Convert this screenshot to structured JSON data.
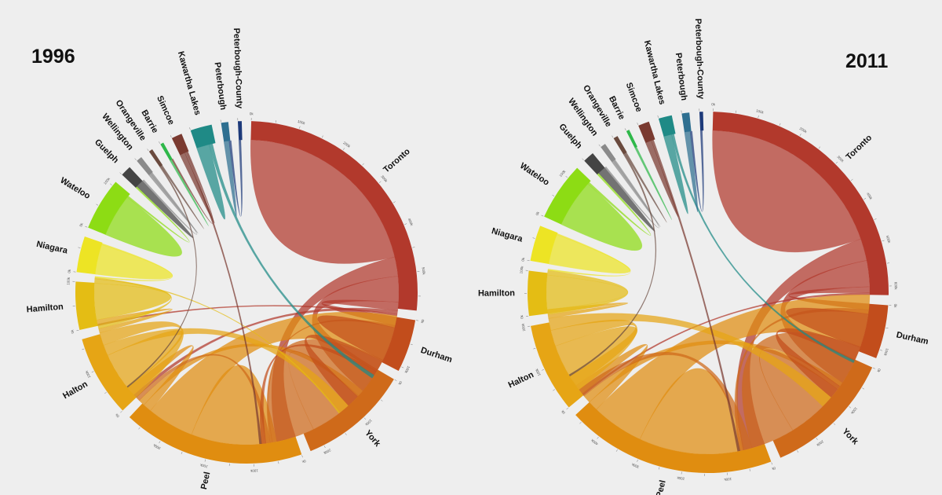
{
  "chart_data": [
    {
      "type": "chord",
      "title": "1996",
      "regions": [
        {
          "name": "Toronto",
          "color": "#b2392c"
        },
        {
          "name": "Durham",
          "color": "#c24d1c"
        },
        {
          "name": "York",
          "color": "#cf6a1a"
        },
        {
          "name": "Peel",
          "color": "#e08d10"
        },
        {
          "name": "Halton",
          "color": "#e6a515"
        },
        {
          "name": "Hamilton",
          "color": "#e4bd14"
        },
        {
          "name": "Niagara",
          "color": "#ede424"
        },
        {
          "name": "Wateloo",
          "color": "#8ddc14"
        },
        {
          "name": "Guelph",
          "color": "#444444"
        },
        {
          "name": "Wellington",
          "color": "#8a8a8a"
        },
        {
          "name": "Orangeville",
          "color": "#6a4a3e"
        },
        {
          "name": "Barrie",
          "color": "#2fb84a"
        },
        {
          "name": "Simcoe",
          "color": "#7a3a30"
        },
        {
          "name": "Kawartha Lakes",
          "color": "#1f8a86"
        },
        {
          "name": "Peterbough",
          "color": "#2e6f90"
        },
        {
          "name": "Peterbough-County",
          "color": "#1d3a7a"
        }
      ],
      "totals": [
        580,
        110,
        230,
        380,
        170,
        100,
        75,
        110,
        22,
        12,
        8,
        7,
        22,
        45,
        15,
        8
      ],
      "flows": [
        {
          "source": "Toronto",
          "target": "Toronto",
          "value": 460
        },
        {
          "source": "Toronto",
          "target": "Peel",
          "value": 45
        },
        {
          "source": "Toronto",
          "target": "York",
          "value": 60
        },
        {
          "source": "Toronto",
          "target": "Durham",
          "value": 20
        },
        {
          "source": "Toronto",
          "target": "Halton",
          "value": 8
        },
        {
          "source": "Toronto",
          "target": "Hamilton",
          "value": 4
        },
        {
          "source": "Peel",
          "target": "Peel",
          "value": 200
        },
        {
          "source": "Peel",
          "target": "Toronto",
          "value": 110
        },
        {
          "source": "Peel",
          "target": "Halton",
          "value": 20
        },
        {
          "source": "Peel",
          "target": "York",
          "value": 15
        },
        {
          "source": "York",
          "target": "York",
          "value": 130
        },
        {
          "source": "York",
          "target": "Toronto",
          "value": 100
        },
        {
          "source": "York",
          "target": "Durham",
          "value": 5
        },
        {
          "source": "York",
          "target": "Peel",
          "value": 10
        },
        {
          "source": "Durham",
          "target": "Durham",
          "value": 80
        },
        {
          "source": "Durham",
          "target": "Toronto",
          "value": 30
        },
        {
          "source": "Durham",
          "target": "York",
          "value": 10
        },
        {
          "source": "Halton",
          "target": "Halton",
          "value": 90
        },
        {
          "source": "Halton",
          "target": "Toronto",
          "value": 25
        },
        {
          "source": "Halton",
          "target": "Peel",
          "value": 30
        },
        {
          "source": "Halton",
          "target": "Hamilton",
          "value": 10
        },
        {
          "source": "Hamilton",
          "target": "Hamilton",
          "value": 85
        },
        {
          "source": "Hamilton",
          "target": "Halton",
          "value": 10
        },
        {
          "source": "Hamilton",
          "target": "Toronto",
          "value": 3
        },
        {
          "source": "Niagara",
          "target": "Niagara",
          "value": 70
        },
        {
          "source": "Niagara",
          "target": "Hamilton",
          "value": 3
        },
        {
          "source": "Wateloo",
          "target": "Wateloo",
          "value": 100
        },
        {
          "source": "Wateloo",
          "target": "Guelph",
          "value": 4
        },
        {
          "source": "Guelph",
          "target": "Guelph",
          "value": 18
        },
        {
          "source": "Wellington",
          "target": "Wellington",
          "value": 6
        },
        {
          "source": "Wellington",
          "target": "Guelph",
          "value": 4
        },
        {
          "source": "Orangeville",
          "target": "Peel",
          "value": 3
        },
        {
          "source": "Orangeville",
          "target": "Orangeville",
          "value": 4
        },
        {
          "source": "Barrie",
          "target": "Barrie",
          "value": 5
        },
        {
          "source": "Simcoe",
          "target": "Simcoe",
          "value": 12
        },
        {
          "source": "Simcoe",
          "target": "York",
          "value": 5
        },
        {
          "source": "Simcoe",
          "target": "Barrie",
          "value": 3
        },
        {
          "source": "Kawartha Lakes",
          "target": "Kawartha Lakes",
          "value": 30
        },
        {
          "source": "Kawartha Lakes",
          "target": "Durham",
          "value": 8
        },
        {
          "source": "Peterbough",
          "target": "Peterbough",
          "value": 12
        },
        {
          "source": "Peterbough-County",
          "target": "Peterbough",
          "value": 5
        }
      ]
    },
    {
      "type": "chord",
      "title": "2011",
      "regions": [
        {
          "name": "Toronto",
          "color": "#b2392c"
        },
        {
          "name": "Durham",
          "color": "#c24d1c"
        },
        {
          "name": "York",
          "color": "#cf6a1a"
        },
        {
          "name": "Peel",
          "color": "#e08d10"
        },
        {
          "name": "Halton",
          "color": "#e6a515"
        },
        {
          "name": "Hamilton",
          "color": "#e4bd14"
        },
        {
          "name": "Niagara",
          "color": "#ede424"
        },
        {
          "name": "Wateloo",
          "color": "#8ddc14"
        },
        {
          "name": "Guelph",
          "color": "#444444"
        },
        {
          "name": "Wellington",
          "color": "#8a8a8a"
        },
        {
          "name": "Orangeville",
          "color": "#6a4a3e"
        },
        {
          "name": "Barrie",
          "color": "#2fb84a"
        },
        {
          "name": "Simcoe",
          "color": "#7a3a30"
        },
        {
          "name": "Kawartha Lakes",
          "color": "#1f8a86"
        },
        {
          "name": "Peterbough",
          "color": "#2e6f90"
        },
        {
          "name": "Peterbough-County",
          "color": "#1d3a7a"
        }
      ],
      "totals": [
        620,
        120,
        290,
        470,
        200,
        100,
        80,
        130,
        25,
        12,
        10,
        7,
        25,
        30,
        17,
        8
      ],
      "flows": [
        {
          "source": "Toronto",
          "target": "Toronto",
          "value": 480
        },
        {
          "source": "Toronto",
          "target": "Peel",
          "value": 55
        },
        {
          "source": "Toronto",
          "target": "York",
          "value": 65
        },
        {
          "source": "Toronto",
          "target": "Durham",
          "value": 15
        },
        {
          "source": "Toronto",
          "target": "Halton",
          "value": 5
        },
        {
          "source": "Peel",
          "target": "Peel",
          "value": 260
        },
        {
          "source": "Peel",
          "target": "Toronto",
          "value": 130
        },
        {
          "source": "Peel",
          "target": "Halton",
          "value": 25
        },
        {
          "source": "Peel",
          "target": "York",
          "value": 20
        },
        {
          "source": "York",
          "target": "York",
          "value": 150
        },
        {
          "source": "York",
          "target": "Toronto",
          "value": 110
        },
        {
          "source": "York",
          "target": "Peel",
          "value": 20
        },
        {
          "source": "York",
          "target": "Durham",
          "value": 10
        },
        {
          "source": "Durham",
          "target": "Durham",
          "value": 85
        },
        {
          "source": "Durham",
          "target": "Toronto",
          "value": 35
        },
        {
          "source": "Halton",
          "target": "Halton",
          "value": 110
        },
        {
          "source": "Halton",
          "target": "Peel",
          "value": 40
        },
        {
          "source": "Halton",
          "target": "Toronto",
          "value": 30
        },
        {
          "source": "Halton",
          "target": "Hamilton",
          "value": 10
        },
        {
          "source": "Hamilton",
          "target": "Hamilton",
          "value": 85
        },
        {
          "source": "Hamilton",
          "target": "Halton",
          "value": 12
        },
        {
          "source": "Niagara",
          "target": "Niagara",
          "value": 75
        },
        {
          "source": "Niagara",
          "target": "Hamilton",
          "value": 3
        },
        {
          "source": "Wateloo",
          "target": "Wateloo",
          "value": 120
        },
        {
          "source": "Wateloo",
          "target": "Guelph",
          "value": 5
        },
        {
          "source": "Guelph",
          "target": "Guelph",
          "value": 20
        },
        {
          "source": "Wellington",
          "target": "Wellington",
          "value": 6
        },
        {
          "source": "Wellington",
          "target": "Guelph",
          "value": 4
        },
        {
          "source": "Orangeville",
          "target": "Peel",
          "value": 4
        },
        {
          "source": "Orangeville",
          "target": "Orangeville",
          "value": 5
        },
        {
          "source": "Barrie",
          "target": "Barrie",
          "value": 5
        },
        {
          "source": "Simcoe",
          "target": "Simcoe",
          "value": 15
        },
        {
          "source": "Simcoe",
          "target": "York",
          "value": 6
        },
        {
          "source": "Kawartha Lakes",
          "target": "Kawartha Lakes",
          "value": 20
        },
        {
          "source": "Kawartha Lakes",
          "target": "Durham",
          "value": 6
        },
        {
          "source": "Peterbough",
          "target": "Peterbough",
          "value": 14
        },
        {
          "source": "Peterbough-County",
          "target": "Peterbough",
          "value": 5
        }
      ]
    }
  ]
}
